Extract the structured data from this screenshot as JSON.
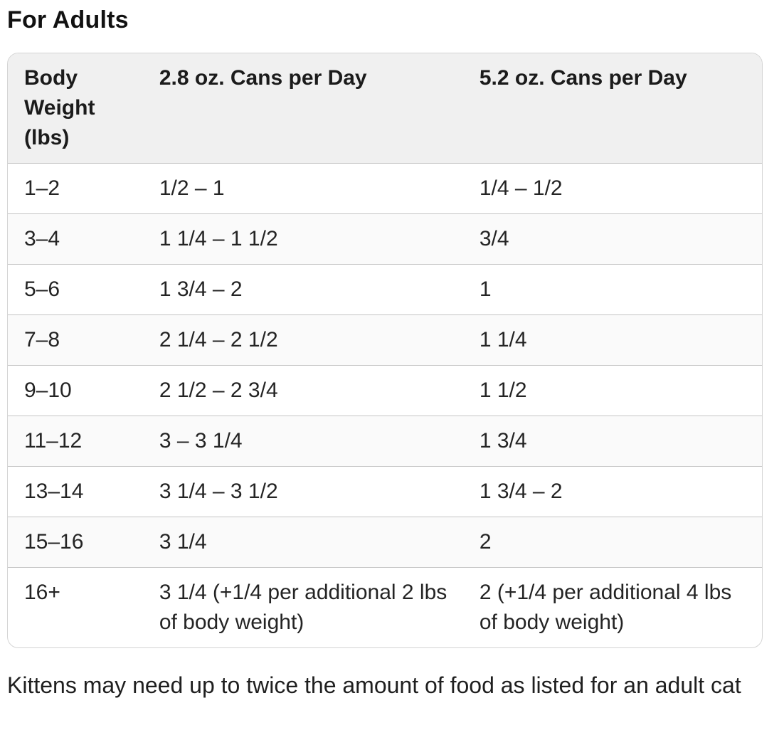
{
  "page": {
    "title": "For Adults",
    "footnote": "Kittens may need up to twice the amount of food as listed for an adult cat"
  },
  "table": {
    "header": [
      "Body Weight (lbs)",
      "2.8 oz. Cans per Day",
      "5.2 oz. Cans per Day"
    ],
    "rows": [
      [
        "1–2",
        "1/2 – 1",
        "1/4 – 1/2"
      ],
      [
        "3–4",
        "1 1/4 – 1 1/2",
        "3/4"
      ],
      [
        "5–6",
        "1 3/4 – 2",
        "1"
      ],
      [
        "7–8",
        "2 1/4 – 2 1/2",
        "1 1/4"
      ],
      [
        "9–10",
        "2 1/2 – 2 3/4",
        "1 1/2"
      ],
      [
        "11–12",
        "3 – 3 1/4",
        "1 3/4"
      ],
      [
        "13–14",
        "3 1/4 – 3 1/2",
        "1 3/4 – 2"
      ],
      [
        "15–16",
        "3 1/4",
        "2"
      ],
      [
        "16+",
        "3 1/4 (+1/4 per additional 2 lbs of body weight)",
        "2 (+1/4 per additional 4 lbs of body weight)"
      ]
    ]
  },
  "colors": {
    "header_background": "#f0f0f0",
    "row_stripe": "#fafafa",
    "row_border": "#c4c4c4",
    "card_border": "#d4d4d4",
    "text": "#222222"
  }
}
